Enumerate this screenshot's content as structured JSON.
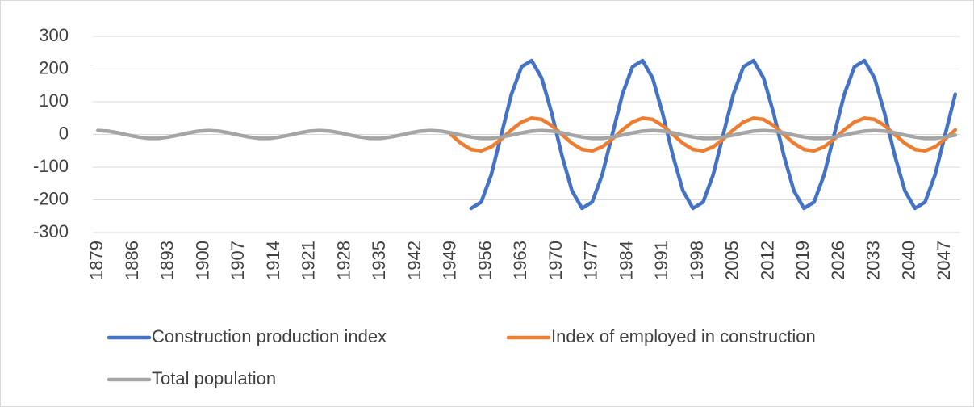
{
  "chart_data": {
    "type": "line",
    "x": [
      1879,
      1881,
      1883,
      1885,
      1887,
      1889,
      1891,
      1893,
      1895,
      1897,
      1899,
      1901,
      1903,
      1905,
      1907,
      1909,
      1911,
      1913,
      1915,
      1917,
      1919,
      1921,
      1923,
      1925,
      1927,
      1929,
      1931,
      1933,
      1935,
      1937,
      1939,
      1941,
      1943,
      1945,
      1947,
      1949,
      1951,
      1953,
      1955,
      1957,
      1959,
      1961,
      1963,
      1965,
      1967,
      1969,
      1971,
      1973,
      1975,
      1977,
      1979,
      1981,
      1983,
      1985,
      1987,
      1989,
      1991,
      1993,
      1995,
      1997,
      1999,
      2001,
      2003,
      2005,
      2007,
      2009,
      2011,
      2013,
      2015,
      2017,
      2019,
      2021,
      2023,
      2025,
      2027,
      2029,
      2031,
      2033,
      2035,
      2037,
      2039,
      2041,
      2043,
      2045,
      2047,
      2049
    ],
    "series": [
      {
        "name": "Construction production index",
        "color": "#4472c4",
        "values": [
          null,
          null,
          null,
          null,
          null,
          null,
          null,
          null,
          null,
          null,
          null,
          null,
          null,
          null,
          null,
          null,
          null,
          null,
          null,
          null,
          null,
          null,
          null,
          null,
          null,
          null,
          null,
          null,
          null,
          null,
          null,
          null,
          null,
          null,
          null,
          null,
          null,
          -226,
          -207,
          -123,
          0,
          123,
          207,
          226,
          172,
          64,
          -64,
          -172,
          -226,
          -207,
          -123,
          0,
          123,
          207,
          226,
          172,
          64,
          -64,
          -172,
          -226,
          -207,
          -123,
          0,
          123,
          207,
          226,
          172,
          64,
          -64,
          -172,
          -226,
          -207,
          -123,
          0,
          123,
          207,
          226,
          172,
          64,
          -64,
          -172,
          -226,
          -207,
          -123,
          0,
          123
        ]
      },
      {
        "name": "Index of employed in construction",
        "color": "#ed7d31",
        "values": [
          null,
          null,
          null,
          null,
          null,
          null,
          null,
          null,
          null,
          null,
          null,
          null,
          null,
          null,
          null,
          null,
          null,
          null,
          null,
          null,
          null,
          null,
          null,
          null,
          null,
          null,
          null,
          null,
          null,
          null,
          null,
          null,
          null,
          null,
          null,
          0,
          -27,
          -46,
          -50,
          -38,
          -14,
          14,
          38,
          50,
          46,
          27,
          0,
          -27,
          -46,
          -50,
          -38,
          -14,
          14,
          38,
          50,
          46,
          27,
          0,
          -27,
          -46,
          -50,
          -38,
          -14,
          14,
          38,
          50,
          46,
          27,
          0,
          -27,
          -46,
          -50,
          -38,
          -14,
          14,
          38,
          50,
          46,
          27,
          0,
          -27,
          -46,
          -50,
          -38,
          -14,
          14
        ]
      },
      {
        "name": "Total population",
        "color": "#a5a5a5",
        "values": [
          12,
          10,
          5,
          -2,
          -8,
          -12,
          -12,
          -8,
          -2,
          5,
          10,
          12,
          10,
          5,
          -2,
          -8,
          -12,
          -12,
          -8,
          -2,
          5,
          10,
          12,
          10,
          5,
          -2,
          -8,
          -12,
          -12,
          -8,
          -2,
          5,
          10,
          12,
          10,
          5,
          -2,
          -8,
          -12,
          -12,
          -8,
          -2,
          5,
          10,
          12,
          10,
          5,
          -2,
          -8,
          -12,
          -12,
          -8,
          -2,
          5,
          10,
          12,
          10,
          5,
          -2,
          -8,
          -12,
          -12,
          -8,
          -2,
          5,
          10,
          12,
          10,
          5,
          -2,
          -8,
          -12,
          -12,
          -8,
          -2,
          5,
          10,
          12,
          10,
          5,
          -2,
          -8,
          -12,
          -12,
          -8,
          -2
        ]
      }
    ],
    "xlim": [
      1878,
      2050
    ],
    "xticks": [
      1879,
      1886,
      1893,
      1900,
      1907,
      1914,
      1921,
      1928,
      1935,
      1942,
      1949,
      1956,
      1963,
      1970,
      1977,
      1984,
      1991,
      1998,
      2005,
      2012,
      2019,
      2026,
      2033,
      2040,
      2047
    ],
    "ylim": [
      -300,
      300
    ],
    "yticks": [
      -300,
      -200,
      -100,
      0,
      100,
      200,
      300
    ],
    "grid": true
  }
}
